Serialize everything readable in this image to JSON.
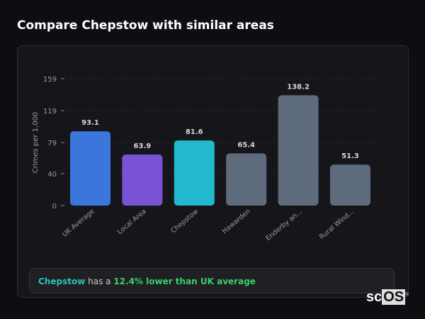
{
  "title": "Compare Chepstow with similar areas",
  "chart_data": {
    "type": "bar",
    "title": "",
    "xlabel": "",
    "ylabel": "Crimes per 1,000",
    "ylim": [
      0,
      159
    ],
    "yticks": [
      0,
      40,
      79,
      119,
      159
    ],
    "grid": true,
    "categories": [
      "UK Average",
      "Local Area",
      "Chepstow",
      "Hawarden",
      "Enderby an...",
      "Rural Wind..."
    ],
    "values": [
      93.1,
      63.9,
      81.6,
      65.4,
      138.2,
      51.3
    ],
    "colors": [
      "#3a76dc",
      "#7a52d6",
      "#22b8cf",
      "#5e6b7d",
      "#5e6b7d",
      "#5e6b7d"
    ]
  },
  "summary": {
    "place": "Chepstow",
    "middle": " has a ",
    "difference": "12.4% lower than UK average"
  },
  "logo": {
    "text_sc": "sc",
    "text_os": "OS",
    "mark": "®"
  }
}
